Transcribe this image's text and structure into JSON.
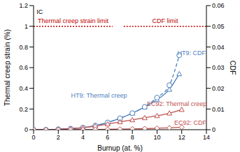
{
  "chart_data": {
    "type": "line",
    "x_label": "Burnup (at. %)",
    "y_label": "Thermal creep strain (%)",
    "y2_label": "CDF",
    "xlim": [
      0,
      14
    ],
    "xticks": [
      0,
      2,
      4,
      6,
      8,
      10,
      12,
      14
    ],
    "ylim": [
      0,
      1.2
    ],
    "yticks": [
      0,
      0.2,
      0.4,
      0.6,
      0.8,
      1,
      1.2
    ],
    "y2lim": [
      0,
      0.06
    ],
    "y2ticks": [
      0,
      0.01,
      0.02,
      0.03,
      0.04,
      0.05,
      0.06
    ],
    "grid": false,
    "series": [
      {
        "x": [
          0,
          1,
          2,
          3,
          4,
          5,
          6,
          7,
          8,
          9,
          10,
          11,
          11.8
        ],
        "values": [
          0,
          0,
          0.005,
          0.01,
          0.02,
          0.04,
          0.07,
          0.11,
          0.16,
          0.22,
          0.29,
          0.39,
          0.54
        ],
        "color": "#4f81bd",
        "marker": "triangle",
        "line_style": "solid"
      },
      {
        "x": [
          0,
          1,
          2,
          3,
          4,
          5,
          6,
          7,
          8,
          9,
          10,
          11,
          11.8
        ],
        "values": [
          0,
          0,
          0.0002,
          0.0005,
          0.001,
          0.002,
          0.0035,
          0.0055,
          0.008,
          0.011,
          0.0155,
          0.0215,
          0.036
        ],
        "color": "#4f81bd",
        "marker": "circle",
        "line_style": "dashed",
        "axis": "y2"
      },
      {
        "x": [
          0,
          1,
          2,
          3,
          4,
          5,
          6,
          7,
          8,
          9,
          10,
          11,
          12
        ],
        "values": [
          0,
          0,
          0.005,
          0.01,
          0.02,
          0.035,
          0.055,
          0.075,
          0.095,
          0.115,
          0.135,
          0.16,
          0.195
        ],
        "color": "#c0504d",
        "marker": "triangle",
        "line_style": "solid"
      },
      {
        "x": [
          0,
          1,
          2,
          3,
          4,
          5,
          6,
          7,
          8,
          9,
          10,
          11,
          12
        ],
        "values": [
          0,
          0,
          0,
          0,
          0,
          0.0001,
          0.0002,
          0.0003,
          0.0004,
          0.0005,
          0.0007,
          0.0009,
          0.0012
        ],
        "color": "#c0504d",
        "marker": "diamond",
        "line_style": "solid",
        "axis": "y2"
      }
    ],
    "reference_lines": [
      {
        "label": "Thermal creep strain limit",
        "value": 1,
        "x_range": [
          0,
          6.4
        ],
        "color": "#c00000",
        "line_style": "dotted"
      },
      {
        "label": "CDF limit",
        "value": 0.05,
        "axis": "y2",
        "x_range": [
          7.3,
          14
        ],
        "color": "#c00000",
        "line_style": "dotted"
      }
    ],
    "annotations": [
      {
        "text": "IC",
        "x": 0.5,
        "y": 1.14,
        "color": "#000000"
      },
      {
        "text": "HT9: Thermal creep",
        "x": 5.3,
        "y": 0.33,
        "color": "#4f81bd"
      },
      {
        "text": "HT9: CDF",
        "x": 12.8,
        "y": 0.74,
        "color": "#4f81bd"
      },
      {
        "text": "EC92: Thermal creep",
        "x": 11.6,
        "y": 0.25,
        "color": "#c0504d"
      },
      {
        "text": "EC92: CDF",
        "x": 12.7,
        "y": 0.07,
        "color": "#c0504d"
      }
    ]
  }
}
